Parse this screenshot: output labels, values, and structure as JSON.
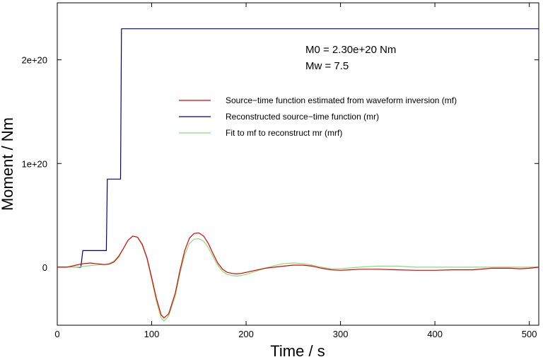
{
  "chart_data": {
    "type": "line",
    "title": "",
    "xlabel": "Time / s",
    "ylabel": "Moment / Nm",
    "xlim": [
      0,
      510
    ],
    "ylim": [
      -5.6e+19,
      2.55e+20
    ],
    "xticks": [
      {
        "value": 0,
        "label": "0"
      },
      {
        "value": 100,
        "label": "100"
      },
      {
        "value": 200,
        "label": "200"
      },
      {
        "value": 300,
        "label": "300"
      },
      {
        "value": 400,
        "label": "400"
      },
      {
        "value": 500,
        "label": "500"
      }
    ],
    "yticks": [
      {
        "value": 0,
        "label": "0"
      },
      {
        "value": 1e+20,
        "label": "1e+20"
      },
      {
        "value": 2e+20,
        "label": "2e+20"
      }
    ],
    "grid": false,
    "legend_position": "upper-right",
    "annotations": [
      "M0 = 2.30e+20 Nm",
      "Mw = 7.5"
    ],
    "series": [
      {
        "name": "Source−time function estimated from waveform inversion (mf)",
        "color": "#e00000",
        "x": [
          0,
          10,
          20,
          28,
          35,
          40,
          50,
          55,
          60,
          65,
          70,
          75,
          80,
          85,
          90,
          95,
          100,
          105,
          110,
          113,
          118,
          125,
          130,
          135,
          140,
          145,
          150,
          155,
          160,
          165,
          170,
          175,
          180,
          185,
          190,
          195,
          200,
          210,
          220,
          230,
          240,
          250,
          260,
          270,
          280,
          290,
          300,
          310,
          320,
          330,
          340,
          360,
          380,
          400,
          420,
          440,
          460,
          480,
          490,
          500,
          510
        ],
        "y": [
          0,
          0,
          2e+18,
          3.5e+18,
          4e+18,
          3.5e+18,
          2.5e+18,
          3e+18,
          5e+18,
          1e+19,
          1.8e+19,
          2.6e+19,
          3e+19,
          2.9e+19,
          2.2e+19,
          9e+18,
          -1e+19,
          -3e+19,
          -4.6e+19,
          -4.9e+19,
          -4.5e+19,
          -2.5e+19,
          -3e+18,
          1.6e+19,
          2.8e+19,
          3.25e+19,
          3.3e+19,
          3e+19,
          2.3e+19,
          1.3e+19,
          4e+18,
          -2e+18,
          -5e+18,
          -6e+18,
          -6.5e+18,
          -6e+18,
          -5e+18,
          -3e+18,
          -1e+18,
          0,
          1e+18,
          2e+18,
          2e+18,
          1e+18,
          -1e+18,
          -2.5e+18,
          -3e+18,
          -2.5e+18,
          -2e+18,
          -2e+18,
          -2e+18,
          -2.5e+18,
          -3e+18,
          -3e+18,
          -2.5e+18,
          -2.5e+18,
          -1e+18,
          -1e+18,
          -1.5e+18,
          -1e+18,
          0
        ]
      },
      {
        "name": "Reconstructed source−time function (mr)",
        "color": "#000080",
        "x": [
          0,
          25,
          27,
          28,
          52,
          53,
          54,
          66,
          67,
          68,
          69,
          70,
          510
        ],
        "y": [
          0,
          0,
          1.6e+19,
          1.6e+19,
          1.6e+19,
          8.5e+19,
          8.5e+19,
          8.5e+19,
          8.5e+19,
          2.3e+20,
          2.3e+20,
          2.3e+20,
          2.3e+20
        ]
      },
      {
        "name": "Fit to mf to reconstruct mr (mrf)",
        "color": "#80e080",
        "x": [
          0,
          10,
          20,
          30,
          40,
          50,
          55,
          60,
          65,
          70,
          75,
          80,
          85,
          90,
          95,
          100,
          105,
          110,
          113,
          118,
          125,
          130,
          135,
          140,
          145,
          150,
          155,
          160,
          165,
          170,
          175,
          180,
          185,
          190,
          195,
          200,
          210,
          220,
          230,
          240,
          250,
          260,
          270,
          280,
          290,
          300,
          320,
          340,
          360,
          380,
          400,
          420,
          440,
          460,
          480,
          500,
          510
        ],
        "y": [
          0,
          0,
          0,
          1e+18,
          2e+18,
          2.5e+18,
          3.5e+18,
          6e+18,
          1.1e+19,
          1.8e+19,
          2.6e+19,
          3e+19,
          2.9e+19,
          2.1e+19,
          8e+18,
          -1.2e+19,
          -3.3e+19,
          -4.9e+19,
          -5.2e+19,
          -4.7e+19,
          -2.8e+19,
          -6e+18,
          1.2e+19,
          2.3e+19,
          2.7e+19,
          2.75e+19,
          2.5e+19,
          1.9e+19,
          1e+19,
          2e+18,
          -4e+18,
          -7e+18,
          -8e+18,
          -8.5e+18,
          -8e+18,
          -7e+18,
          -4e+18,
          -1e+18,
          1.5e+18,
          3.5e+18,
          4e+18,
          3.5e+18,
          2e+18,
          0,
          -1.5e+18,
          -1.5e+18,
          0,
          1e+18,
          1e+18,
          0,
          0,
          0,
          0,
          0,
          0,
          0,
          0
        ]
      }
    ]
  }
}
